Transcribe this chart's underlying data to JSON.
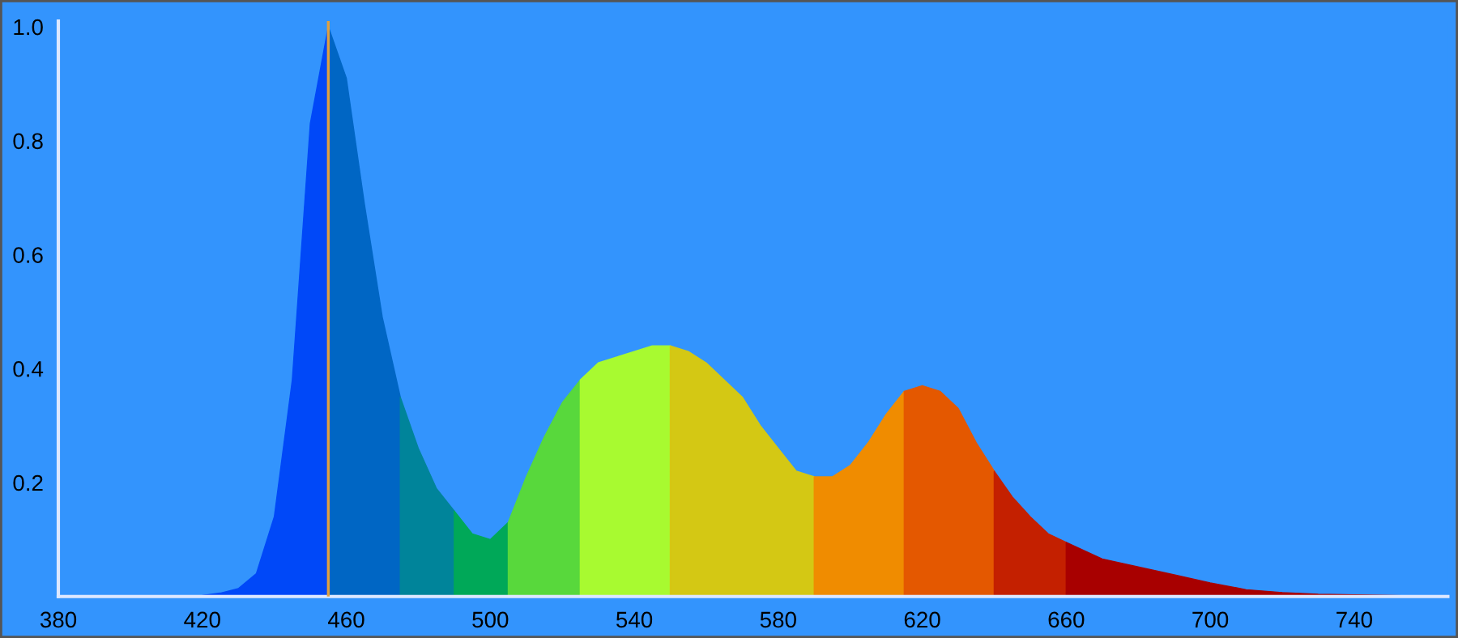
{
  "chart_data": {
    "type": "area",
    "series": [
      {
        "color": "#0048f8",
        "x": [
          415,
          420,
          425,
          430,
          435,
          440,
          445,
          450,
          455
        ],
        "values": [
          0,
          0.002,
          0.006,
          0.014,
          0.04,
          0.14,
          0.38,
          0.83,
          1.0
        ]
      },
      {
        "color": "#0066c4",
        "x": [
          455,
          460,
          465,
          470,
          475
        ],
        "values": [
          1.0,
          0.91,
          0.69,
          0.49,
          0.35
        ]
      },
      {
        "color": "#00849a",
        "x": [
          475,
          480,
          485,
          490
        ],
        "values": [
          0.35,
          0.26,
          0.19,
          0.15
        ]
      },
      {
        "color": "#00a858",
        "x": [
          490,
          495,
          500,
          505
        ],
        "values": [
          0.15,
          0.11,
          0.1,
          0.13
        ]
      },
      {
        "color": "#58d83c",
        "x": [
          505,
          510,
          515,
          520,
          525
        ],
        "values": [
          0.13,
          0.21,
          0.28,
          0.34,
          0.38
        ]
      },
      {
        "color": "#a8fa30",
        "x": [
          525,
          530,
          535,
          540,
          545,
          550
        ],
        "values": [
          0.38,
          0.41,
          0.42,
          0.43,
          0.44,
          0.44
        ]
      },
      {
        "color": "#d4c814",
        "x": [
          550,
          555,
          560,
          570,
          575,
          580,
          585,
          590
        ],
        "values": [
          0.44,
          0.43,
          0.41,
          0.35,
          0.3,
          0.26,
          0.22,
          0.21
        ]
      },
      {
        "color": "#f08c00",
        "x": [
          590,
          595,
          600,
          605,
          610,
          615
        ],
        "values": [
          0.21,
          0.21,
          0.23,
          0.27,
          0.32,
          0.36
        ]
      },
      {
        "color": "#e45800",
        "x": [
          615,
          620,
          625,
          630,
          635,
          640
        ],
        "values": [
          0.36,
          0.37,
          0.36,
          0.33,
          0.27,
          0.22
        ]
      },
      {
        "color": "#c42000",
        "x": [
          640,
          645,
          650,
          655,
          660
        ],
        "values": [
          0.22,
          0.175,
          0.14,
          0.11,
          0.095
        ]
      },
      {
        "color": "#a80000",
        "x": [
          660,
          670,
          680,
          690,
          700,
          710,
          720,
          730,
          740,
          750,
          760
        ],
        "values": [
          0.095,
          0.066,
          0.052,
          0.038,
          0.024,
          0.012,
          0.007,
          0.004,
          0.003,
          0.002,
          0.001
        ]
      }
    ],
    "xlim": [
      380,
      766
    ],
    "ylim": [
      0,
      1.01
    ],
    "xticks": [
      380,
      420,
      460,
      500,
      540,
      580,
      620,
      660,
      700,
      740
    ],
    "yticks": [
      {
        "value": 0.2,
        "label": "0.2"
      },
      {
        "value": 0.4,
        "label": "0.4"
      },
      {
        "value": 0.6,
        "label": "0.6"
      },
      {
        "value": 0.8,
        "label": "0.8"
      },
      {
        "value": 1.0,
        "label": "1.0"
      }
    ],
    "ref_lines": [
      {
        "axis": "x",
        "value": 455,
        "color": "#e0a040"
      }
    ],
    "grid": false,
    "legend": false
  }
}
